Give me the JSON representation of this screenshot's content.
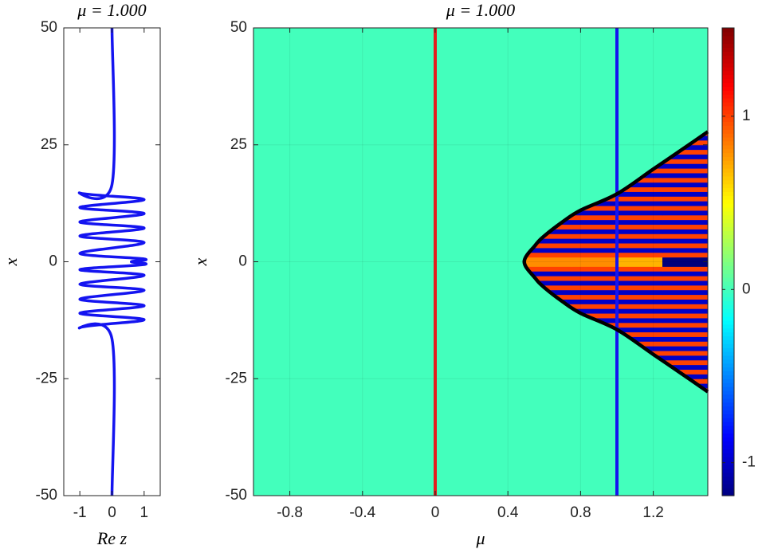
{
  "chart_data": [
    {
      "type": "line",
      "title": "μ = 1.000",
      "xlabel": "Re z",
      "ylabel": "x",
      "xlim": [
        -1.5,
        1.5
      ],
      "ylim": [
        -50,
        50
      ],
      "xticks": [
        -1,
        0,
        1
      ],
      "yticks": [
        -50,
        -25,
        0,
        25,
        50
      ],
      "grid": false,
      "series": [
        {
          "color": "#1414f0",
          "x": [
            0,
            0,
            -1,
            1,
            -1,
            1,
            -1,
            1,
            -1,
            1,
            -1,
            1,
            0.6,
            1,
            -1,
            1,
            -1,
            1,
            -1,
            1,
            -1,
            1,
            -1,
            0,
            0
          ],
          "values": [
            50,
            16.5,
            14.7,
            13.3,
            11.6,
            10.3,
            8.5,
            7.2,
            5.5,
            4.1,
            1.8,
            0.6,
            0,
            -0.6,
            -1.7,
            -2.9,
            -4.8,
            -6.1,
            -8,
            -9.4,
            -11,
            -12.4,
            -14.1,
            -16.5,
            -50
          ]
        }
      ]
    },
    {
      "type": "heatmap",
      "title": "μ = 1.000",
      "xlabel": "μ",
      "ylabel": "x",
      "xlim": [
        -1,
        1.5
      ],
      "ylim": [
        -50,
        50
      ],
      "xticks": [
        -0.8,
        -0.4,
        0,
        0.4,
        0.8,
        1.2
      ],
      "yticks": [
        -50,
        -25,
        0,
        25,
        50
      ],
      "grid": true,
      "colormap": "jet",
      "clim": [
        -1.19,
        1.51
      ],
      "cticks": [
        -1,
        0,
        1
      ],
      "background": 0,
      "x_edges": [
        0.5,
        0.75,
        1,
        1.25,
        1.5
      ],
      "y_edges": [
        -28,
        -27,
        -26,
        -25,
        -24,
        -23,
        -22,
        -21,
        -20,
        -19,
        -18,
        -17,
        -16,
        -15,
        -14,
        -13,
        -12,
        -11,
        -10,
        -9,
        -8,
        -7,
        -6,
        -5,
        -4,
        -3,
        -2,
        -1,
        0,
        1,
        2,
        3,
        4,
        5,
        6,
        7,
        8,
        9,
        10,
        11,
        12,
        13,
        14,
        15,
        16,
        17,
        18,
        19,
        20,
        21,
        22,
        23,
        24,
        25,
        26,
        27,
        28
      ],
      "z": [
        [
          1,
          1,
          1,
          1
        ],
        [
          -1,
          -1,
          -1,
          -1
        ],
        [
          1,
          1,
          1,
          1
        ],
        [
          -1,
          -1,
          -1,
          -1
        ],
        [
          1,
          1,
          1,
          1
        ],
        [
          -1,
          -1,
          -1,
          -1
        ],
        [
          1,
          1,
          1,
          1
        ],
        [
          -1,
          -1,
          -1,
          -1
        ],
        [
          1,
          1,
          1,
          1
        ],
        [
          -1,
          -1,
          -1,
          -1
        ],
        [
          1,
          1,
          1,
          1
        ],
        [
          -1,
          -1,
          -1,
          -1
        ],
        [
          1,
          1,
          1,
          1
        ],
        [
          -1,
          -1,
          -1,
          -1
        ],
        [
          1,
          1,
          1,
          1
        ],
        [
          -1,
          -1,
          -1,
          -1
        ],
        [
          1,
          1,
          1,
          1
        ],
        [
          -1,
          -1,
          -1,
          -1
        ],
        [
          1,
          1,
          1,
          1
        ],
        [
          -1,
          -1,
          -1,
          -1
        ],
        [
          1,
          1,
          1,
          1
        ],
        [
          -1,
          -1,
          -1,
          -1
        ],
        [
          1,
          1,
          1,
          1
        ],
        [
          -1,
          -1,
          -1,
          -1
        ],
        [
          1,
          1,
          1,
          1
        ],
        [
          -1,
          -1,
          -1,
          -1
        ],
        [
          1,
          1,
          1,
          1
        ],
        [
          0.8,
          0.8,
          0.7,
          -1.2
        ],
        [
          0.8,
          0.8,
          0.7,
          -1.2
        ],
        [
          1,
          1,
          1,
          1
        ],
        [
          -1,
          -1,
          -1,
          -1
        ],
        [
          1,
          1,
          1,
          1
        ],
        [
          -1,
          -1,
          -1,
          -1
        ],
        [
          1,
          1,
          1,
          1
        ],
        [
          -1,
          -1,
          -1,
          -1
        ],
        [
          1,
          1,
          1,
          1
        ],
        [
          -1,
          -1,
          -1,
          -1
        ],
        [
          1,
          1,
          1,
          1
        ],
        [
          -1,
          -1,
          -1,
          -1
        ],
        [
          1,
          1,
          1,
          1
        ],
        [
          -1,
          -1,
          -1,
          -1
        ],
        [
          1,
          1,
          1,
          1
        ],
        [
          -1,
          -1,
          -1,
          -1
        ],
        [
          1,
          1,
          1,
          1
        ],
        [
          -1,
          -1,
          -1,
          -1
        ],
        [
          1,
          1,
          1,
          1
        ],
        [
          -1,
          -1,
          -1,
          -1
        ],
        [
          1,
          1,
          1,
          1
        ],
        [
          -1,
          -1,
          -1,
          -1
        ],
        [
          1,
          1,
          1,
          1
        ],
        [
          -1,
          -1,
          -1,
          -1
        ],
        [
          1,
          1,
          1,
          1
        ],
        [
          -1,
          -1,
          -1,
          -1
        ],
        [
          1,
          1,
          1,
          1
        ],
        [
          -1,
          -1,
          -1,
          -1
        ],
        [
          1,
          1,
          1,
          1
        ]
      ],
      "lines": [
        {
          "color": "#e51c1c",
          "x": 0
        },
        {
          "color": "#1414f0",
          "x": 1
        }
      ],
      "curves": [
        {
          "color": "#000000",
          "x": [
            1.5,
            1.4,
            1.2,
            1,
            0.8,
            0.7,
            0.6,
            0.55,
            0.49,
            0.55,
            0.6,
            0.7,
            0.8,
            1,
            1.2,
            1.4,
            1.5
          ],
          "values": [
            -27.8,
            -25.1,
            -19.8,
            -14.5,
            -11,
            -8.5,
            -5.5,
            -3.5,
            0,
            3.5,
            5.5,
            8.5,
            11,
            14.5,
            19.8,
            25.1,
            27.8
          ]
        }
      ]
    }
  ]
}
